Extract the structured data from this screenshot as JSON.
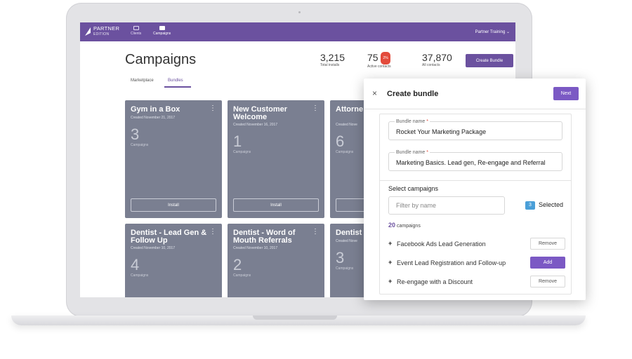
{
  "topbar": {
    "brand_line1": "PARTNER",
    "brand_line2": "EDITION",
    "nav": [
      {
        "label": "Clients"
      },
      {
        "label": "Campaigns"
      }
    ],
    "user_menu": "Partner Training ⌄"
  },
  "header": {
    "title": "Campaigns",
    "stats": [
      {
        "value": "3,215",
        "label": "Total installs"
      },
      {
        "value": "75",
        "badge": "2%",
        "label": "Active contacts"
      },
      {
        "value": "37,870",
        "label": "All contacts"
      }
    ],
    "create_button": "Create Bundle"
  },
  "tabs": [
    {
      "label": "Marketplace"
    },
    {
      "label": "Bundles"
    }
  ],
  "cards": [
    {
      "title": "Gym in a Box",
      "date": "Created November 21, 2017",
      "count": "3",
      "count_label": "Campaigns",
      "button": "Install"
    },
    {
      "title": "New Customer Welcome",
      "date": "Created November 16, 2017",
      "count": "1",
      "count_label": "Campaigns",
      "button": "Install"
    },
    {
      "title": "Attorne & Follov",
      "date": "Created Nove",
      "count": "6",
      "count_label": "Campaigns"
    },
    {
      "title": "Dentist - Lead Gen & Follow Up",
      "date": "Created November 10, 2017",
      "count": "4",
      "count_label": "Campaigns"
    },
    {
      "title": "Dentist - Word of Mouth Referrals",
      "date": "Created November 10, 2017",
      "count": "2",
      "count_label": "Campaigns"
    },
    {
      "title": "Dentist",
      "date": "Created Nove",
      "count": "3",
      "count_label": "Campaigns"
    }
  ],
  "modal": {
    "close_glyph": "×",
    "title": "Create bundle",
    "next_label": "Next",
    "fields": [
      {
        "label": "Bundle name",
        "required_mark": "*",
        "value": "Rocket Your Marketing Package"
      },
      {
        "label": "Bundle name",
        "required_mark": "*",
        "value": "Marketing Basics. Lead gen, Re-engage and Referral"
      }
    ],
    "select_label": "Select campaigns",
    "filter_placeholder": "Filter by name",
    "selected_count": "3",
    "selected_label": "Selected",
    "campaign_count": "20",
    "campaign_count_label": "campaigns",
    "campaigns": [
      {
        "name": "Facebook Ads Lead Generation",
        "action": "Remove"
      },
      {
        "name": "Event Lead Registration and Follow-up",
        "action": "Add"
      },
      {
        "name": "Re-engage with a Discount",
        "action": "Remove"
      }
    ]
  }
}
